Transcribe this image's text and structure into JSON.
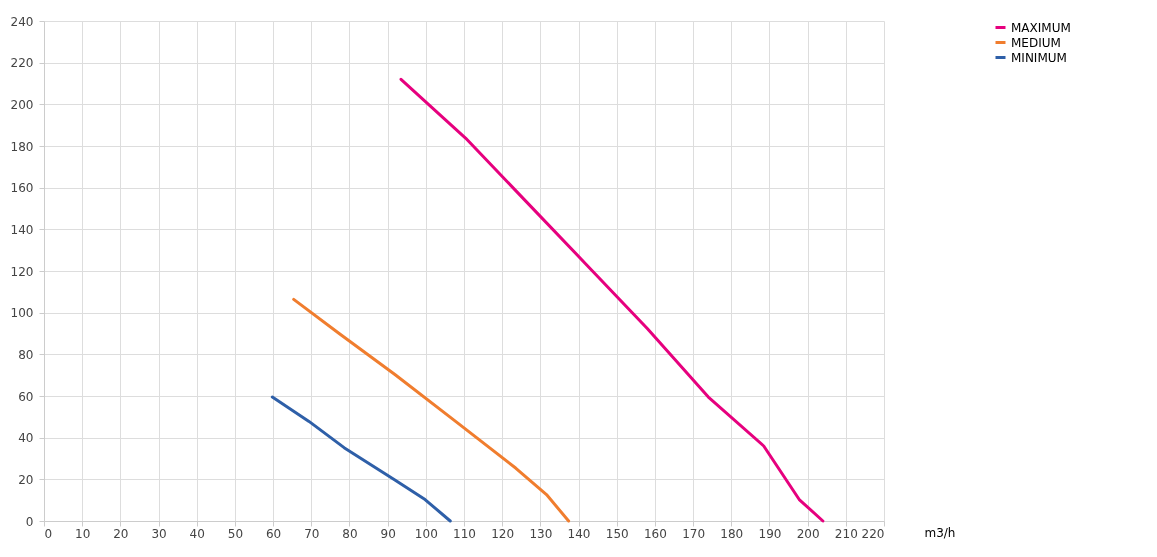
{
  "chart_data": {
    "type": "line",
    "xlabel": "m3/h",
    "legend": "top right",
    "grid": true,
    "line_style": "solid",
    "marker": "none",
    "xlim": [
      0,
      220
    ],
    "xticks": [
      0,
      10,
      20,
      30,
      40,
      50,
      60,
      70,
      80,
      90,
      100,
      110,
      120,
      130,
      140,
      150,
      160,
      170,
      180,
      190,
      200,
      210,
      220
    ],
    "ylim": [
      0,
      240
    ],
    "yticks": [
      0,
      20,
      40,
      60,
      80,
      100,
      120,
      140,
      160,
      180,
      200,
      220,
      240
    ],
    "series": [
      {
        "name": "MAXIMUM",
        "color": "#e6007e",
        "x": [
          93.5,
          110.4,
          126.3,
          142.2,
          158,
          174,
          188.5,
          197.8,
          204
        ],
        "values": [
          212,
          183.8,
          153.3,
          122.8,
          92.4,
          59.5,
          36,
          10.3,
          0
        ]
      },
      {
        "name": "MEDIUM",
        "color": "#f07d2e",
        "x": [
          65.4,
          77.3,
          91.9,
          107.8,
          123.6,
          131.6,
          137.4
        ],
        "values": [
          106.4,
          90,
          70.3,
          47.8,
          25.3,
          12.7,
          0
        ]
      },
      {
        "name": "MINIMUM",
        "color": "#2e5fa8",
        "x": [
          59.8,
          69.4,
          78.6,
          91.9,
          99.8,
          106.4
        ],
        "values": [
          59.5,
          47.8,
          35.2,
          19.7,
          10.3,
          0
        ]
      }
    ]
  }
}
